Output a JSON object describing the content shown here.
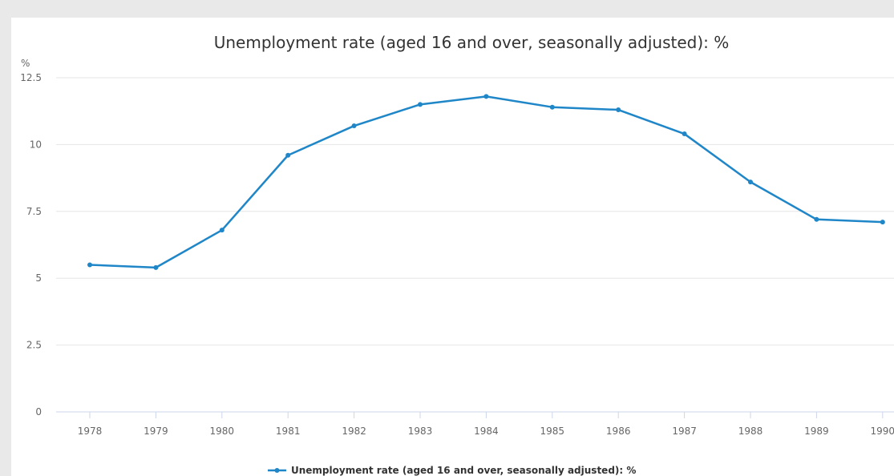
{
  "chart_data": {
    "type": "line",
    "title": "Unemployment rate (aged 16 and over, seasonally adjusted): %",
    "ylabel": "%",
    "xlabel": "",
    "categories": [
      "1978",
      "1979",
      "1980",
      "1981",
      "1982",
      "1983",
      "1984",
      "1985",
      "1986",
      "1987",
      "1988",
      "1989",
      "1990"
    ],
    "series": [
      {
        "name": "Unemployment rate (aged 16 and over, seasonally adjusted): %",
        "values": [
          5.5,
          5.4,
          6.8,
          9.6,
          10.7,
          11.5,
          11.8,
          11.4,
          11.3,
          10.4,
          8.6,
          7.2,
          7.1
        ]
      }
    ],
    "ylim": [
      0,
      12.5
    ],
    "yticks": [
      0,
      2.5,
      5,
      7.5,
      10,
      12.5
    ],
    "ytick_labels": [
      "0",
      "2.5",
      "5",
      "7.5",
      "10",
      "12.5"
    ],
    "grid": true,
    "legend_position": "bottom-center",
    "line_color": "#1f86c8"
  }
}
